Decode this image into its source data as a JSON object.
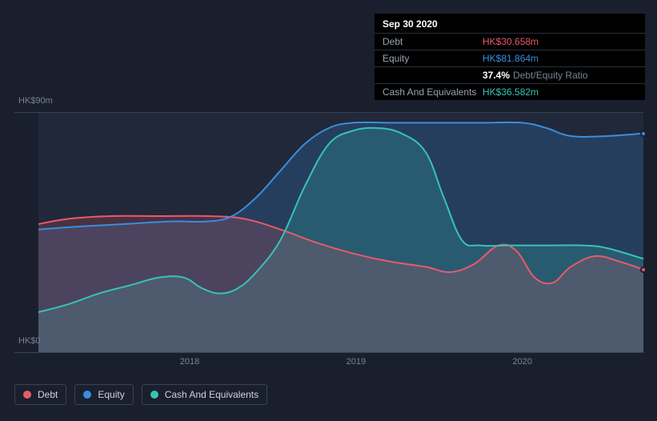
{
  "tooltip": {
    "date": "Sep 30 2020",
    "rows": [
      {
        "label": "Debt",
        "value": "HK$30.658m",
        "class": "debt"
      },
      {
        "label": "Equity",
        "value": "HK$81.864m",
        "class": "equity"
      },
      {
        "label": "",
        "ratio_num": "37.4%",
        "ratio_txt": "Debt/Equity Ratio"
      },
      {
        "label": "Cash And Equivalents",
        "value": "HK$36.582m",
        "class": "cash"
      }
    ]
  },
  "chart": {
    "type": "area",
    "background_color": "#1a1f2e",
    "plot_bg": "rgba(50,58,78,0.35)",
    "grid_color": "#3a4254",
    "ylim": [
      0,
      90
    ],
    "ylabels": [
      {
        "text": "HK$90m",
        "v": 90
      },
      {
        "text": "HK$0",
        "v": 0
      }
    ],
    "xlabels": [
      {
        "text": "2018",
        "t": 0.25
      },
      {
        "text": "2019",
        "t": 0.525
      },
      {
        "text": "2020",
        "t": 0.8
      }
    ],
    "series": {
      "debt": {
        "label": "Debt",
        "color": "#e85a6b",
        "fill_opacity": 0.2,
        "values": [
          [
            0.0,
            48
          ],
          [
            0.05,
            50
          ],
          [
            0.12,
            51
          ],
          [
            0.2,
            51
          ],
          [
            0.28,
            51
          ],
          [
            0.34,
            50
          ],
          [
            0.4,
            46
          ],
          [
            0.46,
            41
          ],
          [
            0.52,
            37
          ],
          [
            0.58,
            34
          ],
          [
            0.64,
            32
          ],
          [
            0.68,
            30
          ],
          [
            0.72,
            33
          ],
          [
            0.76,
            40
          ],
          [
            0.79,
            38
          ],
          [
            0.82,
            28
          ],
          [
            0.85,
            26
          ],
          [
            0.88,
            32
          ],
          [
            0.92,
            36
          ],
          [
            0.96,
            34
          ],
          [
            1.0,
            31
          ]
        ]
      },
      "equity": {
        "label": "Equity",
        "color": "#3a8dde",
        "fill_opacity": 0.22,
        "values": [
          [
            0.0,
            46
          ],
          [
            0.06,
            47
          ],
          [
            0.14,
            48
          ],
          [
            0.22,
            49
          ],
          [
            0.28,
            49
          ],
          [
            0.32,
            51
          ],
          [
            0.36,
            58
          ],
          [
            0.4,
            68
          ],
          [
            0.44,
            78
          ],
          [
            0.48,
            84
          ],
          [
            0.52,
            86
          ],
          [
            0.58,
            86
          ],
          [
            0.66,
            86
          ],
          [
            0.74,
            86
          ],
          [
            0.8,
            86
          ],
          [
            0.84,
            84
          ],
          [
            0.88,
            81
          ],
          [
            0.94,
            81
          ],
          [
            1.0,
            82
          ]
        ]
      },
      "cash": {
        "label": "Cash And Equivalents",
        "color": "#35c4b4",
        "fill_opacity": 0.22,
        "values": [
          [
            0.0,
            15
          ],
          [
            0.05,
            18
          ],
          [
            0.1,
            22
          ],
          [
            0.15,
            25
          ],
          [
            0.2,
            28
          ],
          [
            0.24,
            28
          ],
          [
            0.27,
            24
          ],
          [
            0.3,
            22
          ],
          [
            0.33,
            24
          ],
          [
            0.36,
            30
          ],
          [
            0.4,
            42
          ],
          [
            0.44,
            62
          ],
          [
            0.48,
            78
          ],
          [
            0.52,
            83
          ],
          [
            0.56,
            84
          ],
          [
            0.6,
            82
          ],
          [
            0.64,
            75
          ],
          [
            0.67,
            58
          ],
          [
            0.7,
            42
          ],
          [
            0.73,
            40
          ],
          [
            0.78,
            40
          ],
          [
            0.84,
            40
          ],
          [
            0.9,
            40
          ],
          [
            0.94,
            39
          ],
          [
            1.0,
            35
          ]
        ]
      }
    },
    "legend_order": [
      "debt",
      "equity",
      "cash"
    ]
  }
}
